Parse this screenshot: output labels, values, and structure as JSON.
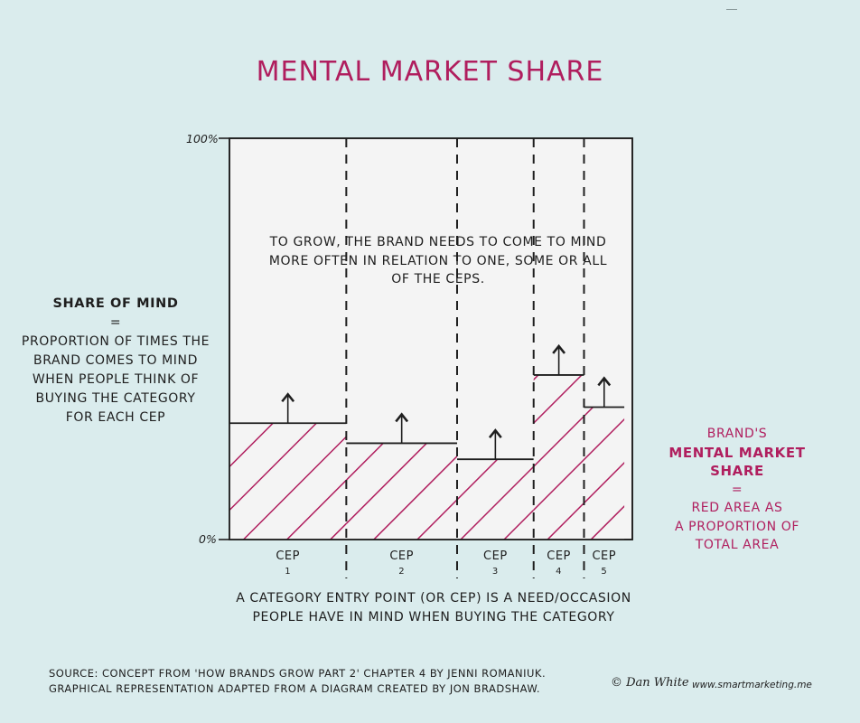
{
  "title": "MENTAL MARKET SHARE",
  "left_panel": {
    "heading": "SHARE OF MIND",
    "equals": "=",
    "lines": [
      "PROPORTION OF TIMES THE",
      "BRAND COMES TO MIND",
      "WHEN PEOPLE THINK OF",
      "BUYING THE CATEGORY",
      "FOR EACH CEP"
    ]
  },
  "right_panel": {
    "line1": "BRAND'S",
    "heading": "MENTAL MARKET SHARE",
    "equals": "=",
    "lines": [
      "RED AREA AS",
      "A PROPORTION OF",
      "TOTAL AREA"
    ]
  },
  "note_lines": [
    "TO GROW, THE BRAND NEEDS TO COME TO MIND",
    "MORE OFTEN IN RELATION TO ONE, SOME OR ALL",
    "OF THE CEPS."
  ],
  "axis": {
    "y_top": "100%",
    "y_bottom": "0%"
  },
  "colors": {
    "accent": "#b01e5e",
    "background": "#daeced",
    "panel": "#f4f4f4",
    "ink": "#1e1e1e"
  },
  "chart_data": {
    "type": "bar",
    "variable_width": true,
    "categories": [
      {
        "name": "CEP",
        "number": "1",
        "width_share": 0.29,
        "value": 29
      },
      {
        "name": "CEP",
        "number": "2",
        "width_share": 0.275,
        "value": 24
      },
      {
        "name": "CEP",
        "number": "3",
        "width_share": 0.19,
        "value": 20
      },
      {
        "name": "CEP",
        "number": "4",
        "width_share": 0.125,
        "value": 41
      },
      {
        "name": "CEP",
        "number": "5",
        "width_share": 0.1,
        "value": 33
      }
    ],
    "ylim": [
      0,
      100
    ],
    "fill": "hatched",
    "arrows": "up",
    "grid": false
  },
  "definition_lines": [
    "A CATEGORY ENTRY POINT (OR CEP) IS A NEED/OCCASION",
    "PEOPLE HAVE IN MIND WHEN BUYING THE CATEGORY"
  ],
  "source_lines": [
    "SOURCE: CONCEPT FROM 'HOW BRANDS GROW PART 2' CHAPTER 4 BY JENNI ROMANIUK.",
    "GRAPHICAL REPRESENTATION ADAPTED FROM A DIAGRAM CREATED BY JON BRADSHAW."
  ],
  "signature": "© Dan White",
  "website": "www.smartmarketing.me"
}
